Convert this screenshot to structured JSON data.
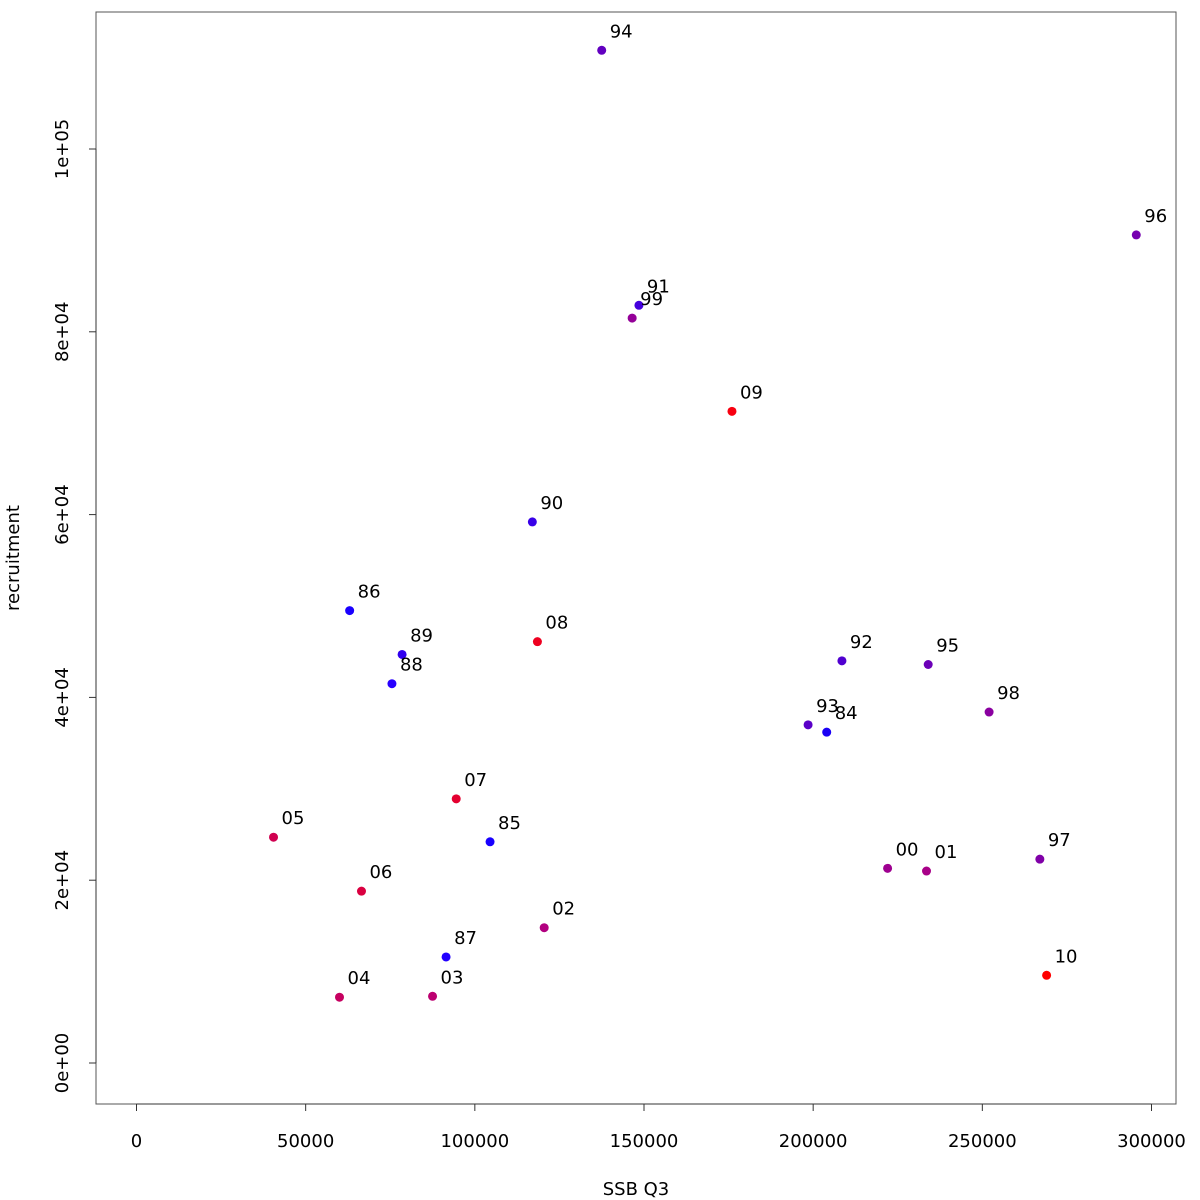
{
  "chart_data": {
    "type": "scatter",
    "title": "",
    "xlabel": "SSB Q3",
    "ylabel": "recruitment",
    "xlim": [
      -12000,
      307000
    ],
    "ylim": [
      -4500,
      115000
    ],
    "x_ticks": [
      0,
      50000,
      100000,
      150000,
      200000,
      250000,
      300000
    ],
    "x_tick_labels": [
      "0",
      "50000",
      "100000",
      "150000",
      "200000",
      "250000",
      "300000"
    ],
    "y_ticks": [
      0,
      20000,
      40000,
      60000,
      80000,
      100000
    ],
    "y_tick_labels": [
      "0e+00",
      "2e+04",
      "4e+04",
      "6e+04",
      "8e+04",
      "1e+05"
    ],
    "grid": false,
    "legend": "none",
    "points": [
      {
        "label": "84",
        "x": 204000,
        "y": 36200,
        "color": "#1a00f5"
      },
      {
        "label": "85",
        "x": 104500,
        "y": 24200,
        "color": "#1800ff"
      },
      {
        "label": "86",
        "x": 63000,
        "y": 49500,
        "color": "#1a00ff"
      },
      {
        "label": "87",
        "x": 91500,
        "y": 11600,
        "color": "#2200ff"
      },
      {
        "label": "88",
        "x": 75500,
        "y": 41500,
        "color": "#2800ff"
      },
      {
        "label": "89",
        "x": 78500,
        "y": 44700,
        "color": "#3000ee"
      },
      {
        "label": "90",
        "x": 117000,
        "y": 59200,
        "color": "#3800e8"
      },
      {
        "label": "91",
        "x": 148500,
        "y": 82900,
        "color": "#4400dd"
      },
      {
        "label": "92",
        "x": 208500,
        "y": 44000,
        "color": "#5000d0"
      },
      {
        "label": "93",
        "x": 198500,
        "y": 37000,
        "color": "#5a00c8"
      },
      {
        "label": "94",
        "x": 137500,
        "y": 110800,
        "color": "#6200c0"
      },
      {
        "label": "95",
        "x": 234000,
        "y": 43600,
        "color": "#6c00b8"
      },
      {
        "label": "96",
        "x": 295500,
        "y": 90600,
        "color": "#7600b0"
      },
      {
        "label": "97",
        "x": 267000,
        "y": 22300,
        "color": "#8000a8"
      },
      {
        "label": "98",
        "x": 252000,
        "y": 38400,
        "color": "#8a00a0"
      },
      {
        "label": "99",
        "x": 146500,
        "y": 81500,
        "color": "#940098"
      },
      {
        "label": "00",
        "x": 222000,
        "y": 21300,
        "color": "#9e0090"
      },
      {
        "label": "01",
        "x": 233500,
        "y": 21000,
        "color": "#a80088"
      },
      {
        "label": "02",
        "x": 120500,
        "y": 14800,
        "color": "#b20080"
      },
      {
        "label": "03",
        "x": 87500,
        "y": 7300,
        "color": "#bc0070"
      },
      {
        "label": "04",
        "x": 60000,
        "y": 7200,
        "color": "#c60060"
      },
      {
        "label": "05",
        "x": 40500,
        "y": 24700,
        "color": "#d00050"
      },
      {
        "label": "06",
        "x": 66500,
        "y": 18800,
        "color": "#da0040"
      },
      {
        "label": "07",
        "x": 94500,
        "y": 28900,
        "color": "#e40030"
      },
      {
        "label": "08",
        "x": 118500,
        "y": 46100,
        "color": "#ee0020"
      },
      {
        "label": "09",
        "x": 176000,
        "y": 71300,
        "color": "#f80010"
      },
      {
        "label": "10",
        "x": 269000,
        "y": 9600,
        "color": "#ff0000"
      }
    ]
  }
}
